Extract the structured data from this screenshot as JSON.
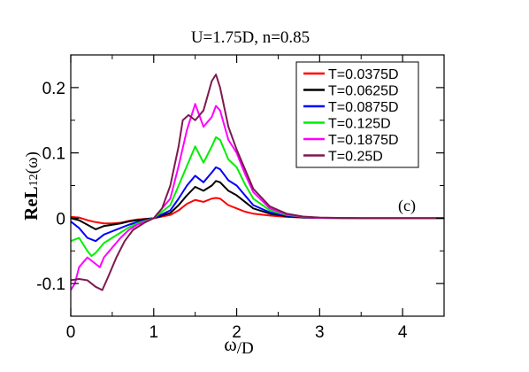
{
  "chart_data": {
    "type": "line",
    "title": "U=1.75D, n=0.85",
    "ylabel_main": "ReL",
    "ylabel_sub": "12",
    "ylabel_tail": "(ω)",
    "xlabel_main": "ω",
    "xlabel_tail": "/D",
    "panel_label": "(c)",
    "xlim": [
      0,
      4.5
    ],
    "ylim": [
      -0.15,
      0.25
    ],
    "xticks": [
      0,
      1,
      2,
      3,
      4
    ],
    "xtick_labels": [
      "0",
      "1",
      "2",
      "3",
      "4"
    ],
    "yticks": [
      -0.1,
      0,
      0.1,
      0.2
    ],
    "ytick_labels": [
      "-0.1",
      "0",
      "0.1",
      "0.2"
    ],
    "grid": false,
    "legend_position": "top-right",
    "series": [
      {
        "name": "T=0.0375D",
        "color": "#ff0000",
        "points": [
          [
            0,
            0.002
          ],
          [
            0.1,
            0.001
          ],
          [
            0.2,
            -0.003
          ],
          [
            0.3,
            -0.006
          ],
          [
            0.4,
            -0.008
          ],
          [
            0.5,
            -0.008
          ],
          [
            0.6,
            -0.007
          ],
          [
            0.7,
            -0.004
          ],
          [
            0.8,
            -0.002
          ],
          [
            1.0,
            0
          ],
          [
            1.2,
            0.005
          ],
          [
            1.3,
            0.012
          ],
          [
            1.4,
            0.022
          ],
          [
            1.5,
            0.028
          ],
          [
            1.6,
            0.025
          ],
          [
            1.7,
            0.03
          ],
          [
            1.75,
            0.031
          ],
          [
            1.8,
            0.03
          ],
          [
            1.9,
            0.02
          ],
          [
            2.0,
            0.015
          ],
          [
            2.1,
            0.01
          ],
          [
            2.2,
            0.007
          ],
          [
            2.4,
            0.004
          ],
          [
            2.6,
            0.002
          ],
          [
            2.8,
            0.001
          ],
          [
            3.0,
            0.0005
          ],
          [
            3.5,
            0
          ],
          [
            4.5,
            0
          ]
        ]
      },
      {
        "name": "T=0.0625D",
        "color": "#000000",
        "points": [
          [
            0,
            0
          ],
          [
            0.1,
            -0.003
          ],
          [
            0.2,
            -0.01
          ],
          [
            0.3,
            -0.017
          ],
          [
            0.4,
            -0.012
          ],
          [
            0.5,
            -0.01
          ],
          [
            0.6,
            -0.008
          ],
          [
            0.7,
            -0.005
          ],
          [
            0.8,
            -0.003
          ],
          [
            1.0,
            0
          ],
          [
            1.2,
            0.008
          ],
          [
            1.3,
            0.02
          ],
          [
            1.4,
            0.035
          ],
          [
            1.5,
            0.048
          ],
          [
            1.6,
            0.042
          ],
          [
            1.7,
            0.05
          ],
          [
            1.75,
            0.057
          ],
          [
            1.8,
            0.055
          ],
          [
            1.9,
            0.042
          ],
          [
            2.0,
            0.035
          ],
          [
            2.1,
            0.025
          ],
          [
            2.2,
            0.015
          ],
          [
            2.4,
            0.007
          ],
          [
            2.6,
            0.003
          ],
          [
            2.8,
            0.001
          ],
          [
            3.0,
            0.0005
          ],
          [
            3.5,
            0
          ],
          [
            4.5,
            0
          ]
        ]
      },
      {
        "name": "T=0.0875D",
        "color": "#0000ff",
        "points": [
          [
            0,
            -0.005
          ],
          [
            0.1,
            -0.015
          ],
          [
            0.2,
            -0.03
          ],
          [
            0.3,
            -0.035
          ],
          [
            0.4,
            -0.025
          ],
          [
            0.5,
            -0.02
          ],
          [
            0.6,
            -0.015
          ],
          [
            0.7,
            -0.01
          ],
          [
            0.8,
            -0.006
          ],
          [
            1.0,
            0
          ],
          [
            1.2,
            0.012
          ],
          [
            1.3,
            0.03
          ],
          [
            1.4,
            0.05
          ],
          [
            1.5,
            0.065
          ],
          [
            1.6,
            0.055
          ],
          [
            1.7,
            0.07
          ],
          [
            1.75,
            0.078
          ],
          [
            1.8,
            0.075
          ],
          [
            1.9,
            0.058
          ],
          [
            2.0,
            0.05
          ],
          [
            2.1,
            0.035
          ],
          [
            2.2,
            0.02
          ],
          [
            2.4,
            0.009
          ],
          [
            2.6,
            0.004
          ],
          [
            2.8,
            0.0015
          ],
          [
            3.0,
            0.0005
          ],
          [
            3.5,
            0
          ],
          [
            4.5,
            0
          ]
        ]
      },
      {
        "name": "T=0.125D",
        "color": "#00ee00",
        "points": [
          [
            0,
            -0.035
          ],
          [
            0.1,
            -0.03
          ],
          [
            0.2,
            -0.05
          ],
          [
            0.25,
            -0.058
          ],
          [
            0.3,
            -0.053
          ],
          [
            0.4,
            -0.038
          ],
          [
            0.5,
            -0.03
          ],
          [
            0.6,
            -0.022
          ],
          [
            0.7,
            -0.014
          ],
          [
            0.8,
            -0.008
          ],
          [
            1.0,
            0
          ],
          [
            1.2,
            0.02
          ],
          [
            1.3,
            0.05
          ],
          [
            1.4,
            0.08
          ],
          [
            1.5,
            0.11
          ],
          [
            1.6,
            0.085
          ],
          [
            1.7,
            0.11
          ],
          [
            1.75,
            0.124
          ],
          [
            1.8,
            0.12
          ],
          [
            1.9,
            0.09
          ],
          [
            2.0,
            0.078
          ],
          [
            2.1,
            0.052
          ],
          [
            2.2,
            0.03
          ],
          [
            2.4,
            0.012
          ],
          [
            2.6,
            0.005
          ],
          [
            2.8,
            0.002
          ],
          [
            3.0,
            0.0005
          ],
          [
            3.5,
            0
          ],
          [
            4.5,
            0
          ]
        ]
      },
      {
        "name": "T=0.1875D",
        "color": "#ff00ff",
        "points": [
          [
            0,
            -0.11
          ],
          [
            0.05,
            -0.1
          ],
          [
            0.1,
            -0.075
          ],
          [
            0.2,
            -0.06
          ],
          [
            0.3,
            -0.07
          ],
          [
            0.35,
            -0.075
          ],
          [
            0.4,
            -0.06
          ],
          [
            0.5,
            -0.045
          ],
          [
            0.6,
            -0.03
          ],
          [
            0.7,
            -0.018
          ],
          [
            0.8,
            -0.01
          ],
          [
            1.0,
            0
          ],
          [
            1.2,
            0.03
          ],
          [
            1.3,
            0.08
          ],
          [
            1.4,
            0.135
          ],
          [
            1.5,
            0.175
          ],
          [
            1.6,
            0.14
          ],
          [
            1.7,
            0.155
          ],
          [
            1.75,
            0.172
          ],
          [
            1.8,
            0.165
          ],
          [
            1.9,
            0.12
          ],
          [
            2.0,
            0.1
          ],
          [
            2.1,
            0.068
          ],
          [
            2.2,
            0.04
          ],
          [
            2.4,
            0.015
          ],
          [
            2.6,
            0.006
          ],
          [
            2.8,
            0.002
          ],
          [
            3.0,
            0.0005
          ],
          [
            3.5,
            0
          ],
          [
            4.5,
            0
          ]
        ]
      },
      {
        "name": "T=0.25D",
        "color": "#7b1a4f",
        "points": [
          [
            0,
            -0.095
          ],
          [
            0.1,
            -0.093
          ],
          [
            0.2,
            -0.095
          ],
          [
            0.3,
            -0.105
          ],
          [
            0.38,
            -0.11
          ],
          [
            0.45,
            -0.09
          ],
          [
            0.55,
            -0.06
          ],
          [
            0.65,
            -0.035
          ],
          [
            0.75,
            -0.018
          ],
          [
            0.9,
            -0.006
          ],
          [
            1.0,
            0
          ],
          [
            1.1,
            0.015
          ],
          [
            1.2,
            0.05
          ],
          [
            1.3,
            0.11
          ],
          [
            1.35,
            0.15
          ],
          [
            1.42,
            0.158
          ],
          [
            1.5,
            0.15
          ],
          [
            1.6,
            0.165
          ],
          [
            1.7,
            0.21
          ],
          [
            1.75,
            0.22
          ],
          [
            1.8,
            0.2
          ],
          [
            1.9,
            0.14
          ],
          [
            2.0,
            0.105
          ],
          [
            2.1,
            0.075
          ],
          [
            2.2,
            0.045
          ],
          [
            2.4,
            0.018
          ],
          [
            2.6,
            0.007
          ],
          [
            2.8,
            0.0025
          ],
          [
            3.0,
            0.001
          ],
          [
            3.5,
            0
          ],
          [
            4.5,
            0
          ]
        ]
      }
    ]
  }
}
